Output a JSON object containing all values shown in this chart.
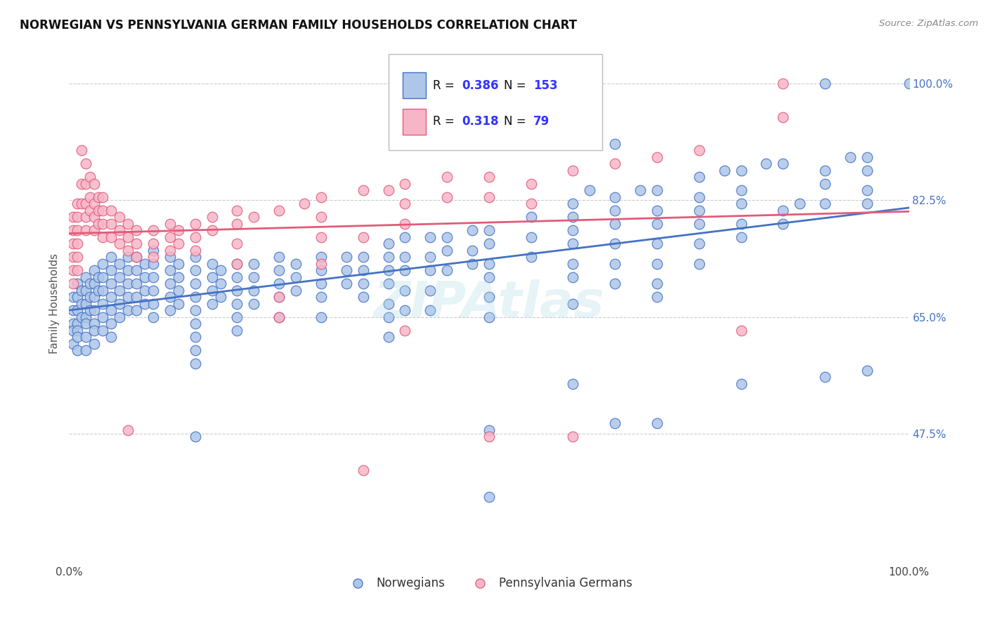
{
  "title": "NORWEGIAN VS PENNSYLVANIA GERMAN FAMILY HOUSEHOLDS CORRELATION CHART",
  "source": "Source: ZipAtlas.com",
  "ylabel": "Family Households",
  "xlim": [
    0.0,
    1.0
  ],
  "ylim": [
    0.28,
    1.06
  ],
  "norwegian_color": "#aec6e8",
  "penn_german_color": "#f7b6c8",
  "norwegian_edge_color": "#4472c4",
  "penn_german_edge_color": "#e05c7a",
  "norwegian_line_color": "#4472c4",
  "penn_german_line_color": "#e05c7a",
  "legend_r_color": "#3333ff",
  "legend_n_color": "#111111",
  "R_norwegian": "0.386",
  "N_norwegian": "153",
  "R_penn_german": "0.318",
  "N_penn_german": "79",
  "watermark": "ZIPAtlas",
  "background_color": "#ffffff",
  "grid_color": "#cccccc",
  "ytick_vals": [
    0.475,
    0.65,
    0.825,
    1.0
  ],
  "ytick_labels": [
    "47.5%",
    "65.0%",
    "82.5%",
    "100.0%"
  ],
  "xtick_labels_left": "0.0%",
  "xtick_labels_right": "100.0%",
  "norwegian_points": [
    [
      0.005,
      0.68
    ],
    [
      0.005,
      0.66
    ],
    [
      0.005,
      0.64
    ],
    [
      0.005,
      0.63
    ],
    [
      0.005,
      0.61
    ],
    [
      0.01,
      0.7
    ],
    [
      0.01,
      0.68
    ],
    [
      0.01,
      0.66
    ],
    [
      0.01,
      0.64
    ],
    [
      0.01,
      0.63
    ],
    [
      0.01,
      0.62
    ],
    [
      0.01,
      0.6
    ],
    [
      0.015,
      0.69
    ],
    [
      0.015,
      0.67
    ],
    [
      0.015,
      0.65
    ],
    [
      0.02,
      0.71
    ],
    [
      0.02,
      0.69
    ],
    [
      0.02,
      0.67
    ],
    [
      0.02,
      0.65
    ],
    [
      0.02,
      0.64
    ],
    [
      0.02,
      0.62
    ],
    [
      0.02,
      0.6
    ],
    [
      0.025,
      0.7
    ],
    [
      0.025,
      0.68
    ],
    [
      0.025,
      0.66
    ],
    [
      0.03,
      0.72
    ],
    [
      0.03,
      0.7
    ],
    [
      0.03,
      0.68
    ],
    [
      0.03,
      0.66
    ],
    [
      0.03,
      0.64
    ],
    [
      0.03,
      0.63
    ],
    [
      0.03,
      0.61
    ],
    [
      0.035,
      0.71
    ],
    [
      0.035,
      0.69
    ],
    [
      0.04,
      0.73
    ],
    [
      0.04,
      0.71
    ],
    [
      0.04,
      0.69
    ],
    [
      0.04,
      0.67
    ],
    [
      0.04,
      0.65
    ],
    [
      0.04,
      0.63
    ],
    [
      0.05,
      0.74
    ],
    [
      0.05,
      0.72
    ],
    [
      0.05,
      0.7
    ],
    [
      0.05,
      0.68
    ],
    [
      0.05,
      0.66
    ],
    [
      0.05,
      0.64
    ],
    [
      0.05,
      0.62
    ],
    [
      0.06,
      0.73
    ],
    [
      0.06,
      0.71
    ],
    [
      0.06,
      0.69
    ],
    [
      0.06,
      0.67
    ],
    [
      0.06,
      0.65
    ],
    [
      0.07,
      0.74
    ],
    [
      0.07,
      0.72
    ],
    [
      0.07,
      0.7
    ],
    [
      0.07,
      0.68
    ],
    [
      0.07,
      0.66
    ],
    [
      0.08,
      0.74
    ],
    [
      0.08,
      0.72
    ],
    [
      0.08,
      0.7
    ],
    [
      0.08,
      0.68
    ],
    [
      0.08,
      0.66
    ],
    [
      0.09,
      0.73
    ],
    [
      0.09,
      0.71
    ],
    [
      0.09,
      0.69
    ],
    [
      0.09,
      0.67
    ],
    [
      0.1,
      0.75
    ],
    [
      0.1,
      0.73
    ],
    [
      0.1,
      0.71
    ],
    [
      0.1,
      0.69
    ],
    [
      0.1,
      0.67
    ],
    [
      0.1,
      0.65
    ],
    [
      0.12,
      0.74
    ],
    [
      0.12,
      0.72
    ],
    [
      0.12,
      0.7
    ],
    [
      0.12,
      0.68
    ],
    [
      0.12,
      0.66
    ],
    [
      0.13,
      0.73
    ],
    [
      0.13,
      0.71
    ],
    [
      0.13,
      0.69
    ],
    [
      0.13,
      0.67
    ],
    [
      0.15,
      0.74
    ],
    [
      0.15,
      0.72
    ],
    [
      0.15,
      0.7
    ],
    [
      0.15,
      0.68
    ],
    [
      0.15,
      0.66
    ],
    [
      0.15,
      0.64
    ],
    [
      0.15,
      0.62
    ],
    [
      0.15,
      0.6
    ],
    [
      0.15,
      0.58
    ],
    [
      0.15,
      0.47
    ],
    [
      0.17,
      0.73
    ],
    [
      0.17,
      0.71
    ],
    [
      0.17,
      0.69
    ],
    [
      0.17,
      0.67
    ],
    [
      0.18,
      0.72
    ],
    [
      0.18,
      0.7
    ],
    [
      0.18,
      0.68
    ],
    [
      0.2,
      0.73
    ],
    [
      0.2,
      0.71
    ],
    [
      0.2,
      0.69
    ],
    [
      0.2,
      0.67
    ],
    [
      0.2,
      0.65
    ],
    [
      0.2,
      0.63
    ],
    [
      0.22,
      0.73
    ],
    [
      0.22,
      0.71
    ],
    [
      0.22,
      0.69
    ],
    [
      0.22,
      0.67
    ],
    [
      0.25,
      0.74
    ],
    [
      0.25,
      0.72
    ],
    [
      0.25,
      0.7
    ],
    [
      0.25,
      0.68
    ],
    [
      0.25,
      0.65
    ],
    [
      0.27,
      0.73
    ],
    [
      0.27,
      0.71
    ],
    [
      0.27,
      0.69
    ],
    [
      0.3,
      0.74
    ],
    [
      0.3,
      0.72
    ],
    [
      0.3,
      0.7
    ],
    [
      0.3,
      0.68
    ],
    [
      0.3,
      0.65
    ],
    [
      0.33,
      0.74
    ],
    [
      0.33,
      0.72
    ],
    [
      0.33,
      0.7
    ],
    [
      0.35,
      0.74
    ],
    [
      0.35,
      0.72
    ],
    [
      0.35,
      0.7
    ],
    [
      0.35,
      0.68
    ],
    [
      0.38,
      0.76
    ],
    [
      0.38,
      0.74
    ],
    [
      0.38,
      0.72
    ],
    [
      0.38,
      0.7
    ],
    [
      0.38,
      0.67
    ],
    [
      0.38,
      0.65
    ],
    [
      0.38,
      0.62
    ],
    [
      0.4,
      0.77
    ],
    [
      0.4,
      0.74
    ],
    [
      0.4,
      0.72
    ],
    [
      0.4,
      0.69
    ],
    [
      0.4,
      0.66
    ],
    [
      0.43,
      0.77
    ],
    [
      0.43,
      0.74
    ],
    [
      0.43,
      0.72
    ],
    [
      0.43,
      0.69
    ],
    [
      0.43,
      0.66
    ],
    [
      0.45,
      0.77
    ],
    [
      0.45,
      0.75
    ],
    [
      0.45,
      0.72
    ],
    [
      0.48,
      0.78
    ],
    [
      0.48,
      0.75
    ],
    [
      0.48,
      0.73
    ],
    [
      0.5,
      0.78
    ],
    [
      0.5,
      0.76
    ],
    [
      0.5,
      0.73
    ],
    [
      0.5,
      0.71
    ],
    [
      0.5,
      0.68
    ],
    [
      0.5,
      0.65
    ],
    [
      0.5,
      0.48
    ],
    [
      0.5,
      0.38
    ],
    [
      0.55,
      0.8
    ],
    [
      0.55,
      0.77
    ],
    [
      0.55,
      0.74
    ],
    [
      0.6,
      0.82
    ],
    [
      0.6,
      0.8
    ],
    [
      0.6,
      0.78
    ],
    [
      0.6,
      0.76
    ],
    [
      0.6,
      0.73
    ],
    [
      0.6,
      0.71
    ],
    [
      0.6,
      0.67
    ],
    [
      0.6,
      0.55
    ],
    [
      0.62,
      0.84
    ],
    [
      0.65,
      0.91
    ],
    [
      0.65,
      0.83
    ],
    [
      0.65,
      0.81
    ],
    [
      0.65,
      0.79
    ],
    [
      0.65,
      0.76
    ],
    [
      0.65,
      0.73
    ],
    [
      0.65,
      0.7
    ],
    [
      0.65,
      0.49
    ],
    [
      0.68,
      0.84
    ],
    [
      0.7,
      0.84
    ],
    [
      0.7,
      0.81
    ],
    [
      0.7,
      0.79
    ],
    [
      0.7,
      0.76
    ],
    [
      0.7,
      0.73
    ],
    [
      0.7,
      0.7
    ],
    [
      0.7,
      0.68
    ],
    [
      0.7,
      0.49
    ],
    [
      0.75,
      0.86
    ],
    [
      0.75,
      0.83
    ],
    [
      0.75,
      0.81
    ],
    [
      0.75,
      0.79
    ],
    [
      0.75,
      0.76
    ],
    [
      0.75,
      0.73
    ],
    [
      0.78,
      0.87
    ],
    [
      0.8,
      0.87
    ],
    [
      0.8,
      0.84
    ],
    [
      0.8,
      0.82
    ],
    [
      0.8,
      0.79
    ],
    [
      0.8,
      0.77
    ],
    [
      0.8,
      0.55
    ],
    [
      0.83,
      0.88
    ],
    [
      0.85,
      0.88
    ],
    [
      0.85,
      0.81
    ],
    [
      0.85,
      0.79
    ],
    [
      0.87,
      0.82
    ],
    [
      0.9,
      1.0
    ],
    [
      0.9,
      0.87
    ],
    [
      0.9,
      0.85
    ],
    [
      0.9,
      0.82
    ],
    [
      0.9,
      0.56
    ],
    [
      0.93,
      0.89
    ],
    [
      0.95,
      0.89
    ],
    [
      0.95,
      0.87
    ],
    [
      0.95,
      0.84
    ],
    [
      0.95,
      0.82
    ],
    [
      0.95,
      0.57
    ],
    [
      1.0,
      1.0
    ]
  ],
  "penn_german_points": [
    [
      0.005,
      0.8
    ],
    [
      0.005,
      0.78
    ],
    [
      0.005,
      0.76
    ],
    [
      0.005,
      0.74
    ],
    [
      0.005,
      0.72
    ],
    [
      0.005,
      0.7
    ],
    [
      0.01,
      0.82
    ],
    [
      0.01,
      0.8
    ],
    [
      0.01,
      0.78
    ],
    [
      0.01,
      0.76
    ],
    [
      0.01,
      0.74
    ],
    [
      0.01,
      0.72
    ],
    [
      0.015,
      0.9
    ],
    [
      0.015,
      0.85
    ],
    [
      0.015,
      0.82
    ],
    [
      0.02,
      0.88
    ],
    [
      0.02,
      0.85
    ],
    [
      0.02,
      0.82
    ],
    [
      0.02,
      0.8
    ],
    [
      0.02,
      0.78
    ],
    [
      0.025,
      0.86
    ],
    [
      0.025,
      0.83
    ],
    [
      0.025,
      0.81
    ],
    [
      0.03,
      0.85
    ],
    [
      0.03,
      0.82
    ],
    [
      0.03,
      0.8
    ],
    [
      0.03,
      0.78
    ],
    [
      0.035,
      0.83
    ],
    [
      0.035,
      0.81
    ],
    [
      0.035,
      0.79
    ],
    [
      0.04,
      0.83
    ],
    [
      0.04,
      0.81
    ],
    [
      0.04,
      0.79
    ],
    [
      0.04,
      0.77
    ],
    [
      0.05,
      0.81
    ],
    [
      0.05,
      0.79
    ],
    [
      0.05,
      0.77
    ],
    [
      0.06,
      0.8
    ],
    [
      0.06,
      0.78
    ],
    [
      0.06,
      0.76
    ],
    [
      0.07,
      0.79
    ],
    [
      0.07,
      0.77
    ],
    [
      0.07,
      0.75
    ],
    [
      0.07,
      0.48
    ],
    [
      0.08,
      0.78
    ],
    [
      0.08,
      0.76
    ],
    [
      0.08,
      0.74
    ],
    [
      0.1,
      0.78
    ],
    [
      0.1,
      0.76
    ],
    [
      0.1,
      0.74
    ],
    [
      0.12,
      0.79
    ],
    [
      0.12,
      0.77
    ],
    [
      0.12,
      0.75
    ],
    [
      0.13,
      0.78
    ],
    [
      0.13,
      0.76
    ],
    [
      0.15,
      0.79
    ],
    [
      0.15,
      0.77
    ],
    [
      0.15,
      0.75
    ],
    [
      0.17,
      0.8
    ],
    [
      0.17,
      0.78
    ],
    [
      0.2,
      0.81
    ],
    [
      0.2,
      0.79
    ],
    [
      0.2,
      0.76
    ],
    [
      0.2,
      0.73
    ],
    [
      0.22,
      0.8
    ],
    [
      0.25,
      0.81
    ],
    [
      0.25,
      0.68
    ],
    [
      0.25,
      0.65
    ],
    [
      0.28,
      0.82
    ],
    [
      0.3,
      0.83
    ],
    [
      0.3,
      0.8
    ],
    [
      0.3,
      0.77
    ],
    [
      0.3,
      0.73
    ],
    [
      0.35,
      0.84
    ],
    [
      0.35,
      0.77
    ],
    [
      0.35,
      0.42
    ],
    [
      0.38,
      0.84
    ],
    [
      0.4,
      0.85
    ],
    [
      0.4,
      0.82
    ],
    [
      0.4,
      0.79
    ],
    [
      0.4,
      0.63
    ],
    [
      0.45,
      0.86
    ],
    [
      0.45,
      0.83
    ],
    [
      0.5,
      0.86
    ],
    [
      0.5,
      0.83
    ],
    [
      0.5,
      0.47
    ],
    [
      0.55,
      0.85
    ],
    [
      0.55,
      0.82
    ],
    [
      0.6,
      0.87
    ],
    [
      0.6,
      0.47
    ],
    [
      0.65,
      0.88
    ],
    [
      0.7,
      0.89
    ],
    [
      0.75,
      0.9
    ],
    [
      0.8,
      0.63
    ],
    [
      0.85,
      1.0
    ],
    [
      0.85,
      0.95
    ]
  ]
}
